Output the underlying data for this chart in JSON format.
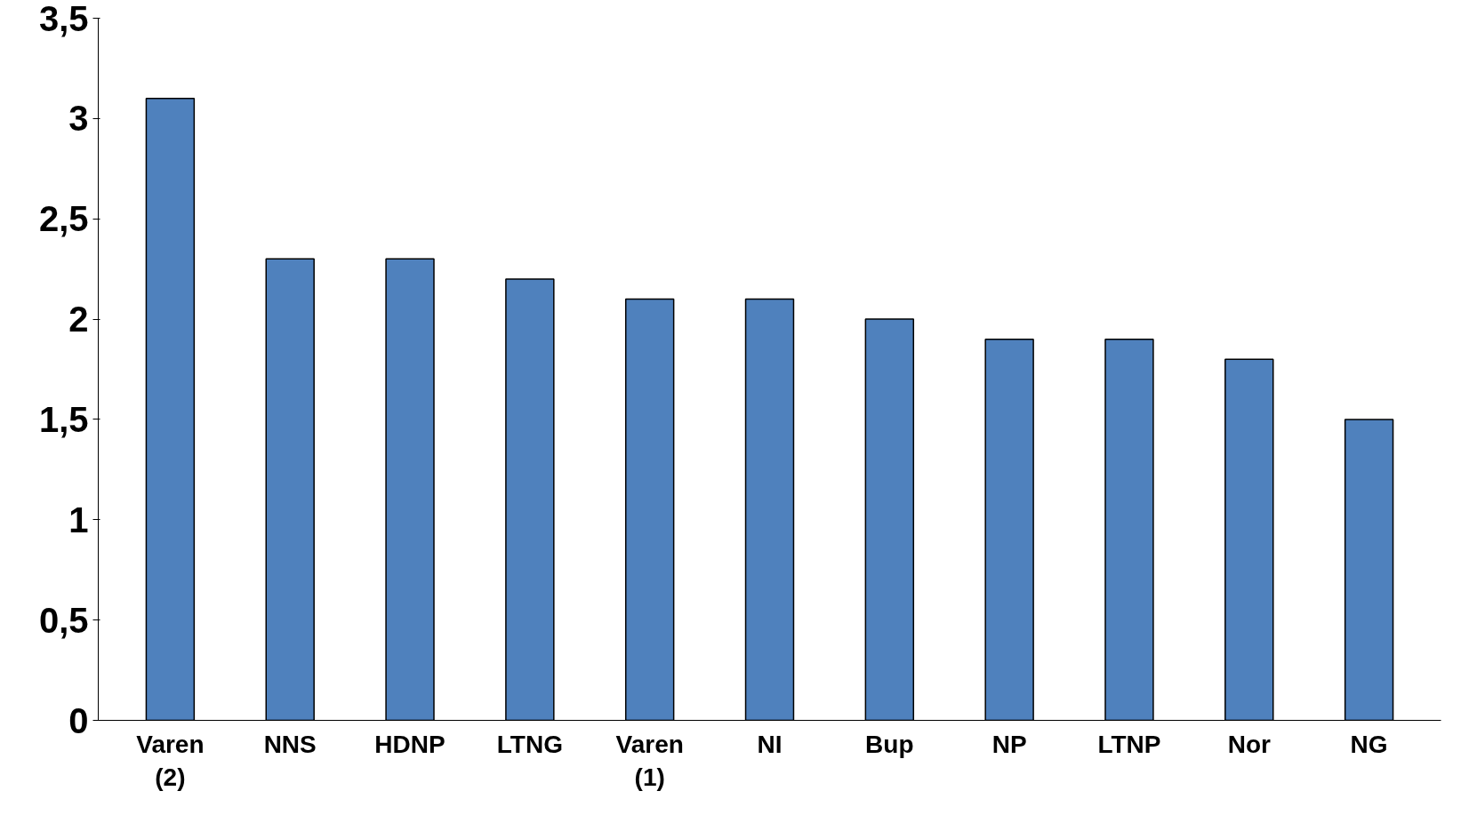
{
  "chart_data": {
    "type": "bar",
    "categories": [
      "Varen\n(2)",
      "NNS",
      "HDNP",
      "LTNG",
      "Varen\n(1)",
      "NI",
      "Bup",
      "NP",
      "LTNP",
      "Nor",
      "NG"
    ],
    "values": [
      3.1,
      2.3,
      2.3,
      2.2,
      2.1,
      2.1,
      2.0,
      1.9,
      1.9,
      1.8,
      1.5
    ],
    "color": "#4f81bd",
    "ylim": [
      0,
      3.5
    ],
    "yticks": [
      0,
      {
        "value": 0.5,
        "label": "0,5"
      },
      1,
      {
        "value": 1.5,
        "label": "1,5"
      },
      2,
      {
        "value": 2.5,
        "label": "2,5"
      },
      3,
      {
        "value": 3.5,
        "label": "3,5"
      }
    ],
    "grid": false
  }
}
